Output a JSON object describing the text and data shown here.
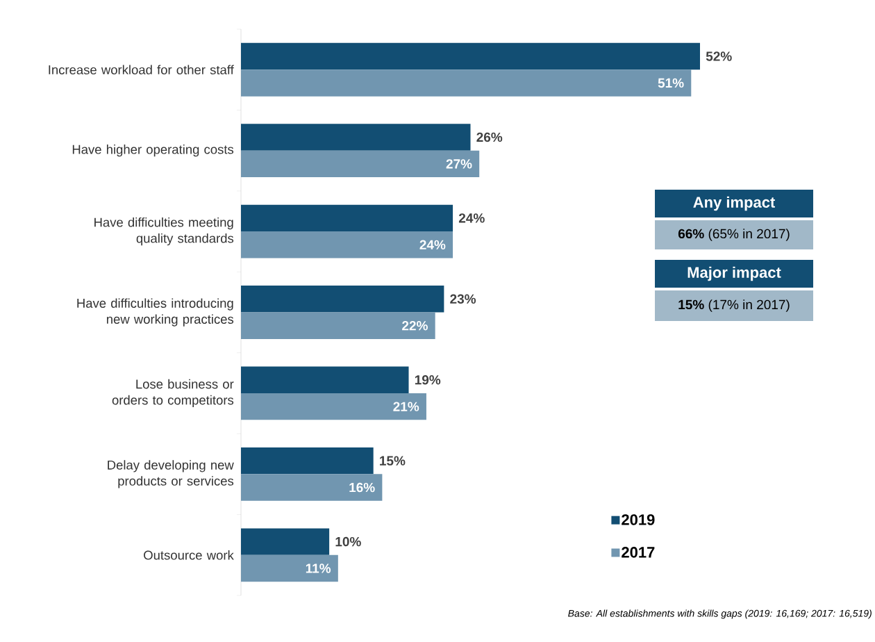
{
  "chart_data": {
    "type": "bar",
    "orientation": "horizontal",
    "categories": [
      "Increase workload for other staff",
      "Have higher operating costs",
      "Have difficulties meeting quality standards",
      "Have difficulties introducing new working practices",
      "Lose business or orders to competitors",
      "Delay developing new products or services",
      "Outsource work"
    ],
    "series": [
      {
        "name": "2019",
        "color": "#124e73",
        "values": [
          52,
          26,
          24,
          23,
          19,
          15,
          10
        ],
        "value_labels": [
          "52%",
          "26%",
          "24%",
          "23%",
          "19%",
          "15%",
          "10%"
        ]
      },
      {
        "name": "2017",
        "color": "#7196b0",
        "values": [
          51,
          27,
          24,
          22,
          21,
          16,
          11
        ],
        "value_labels": [
          "51%",
          "27%",
          "24%",
          "22%",
          "21%",
          "16%",
          "11%"
        ]
      }
    ],
    "tick_labels": "y",
    "legend": "bottom right",
    "annotations": [
      "Any impact",
      "**66%** (65% in 2017)",
      "Major impact",
      "**15%** (17% in 2017)",
      "*Base: All establishments with skills gaps (2019: 16,169; 2017: 16,519)*"
    ]
  }
}
